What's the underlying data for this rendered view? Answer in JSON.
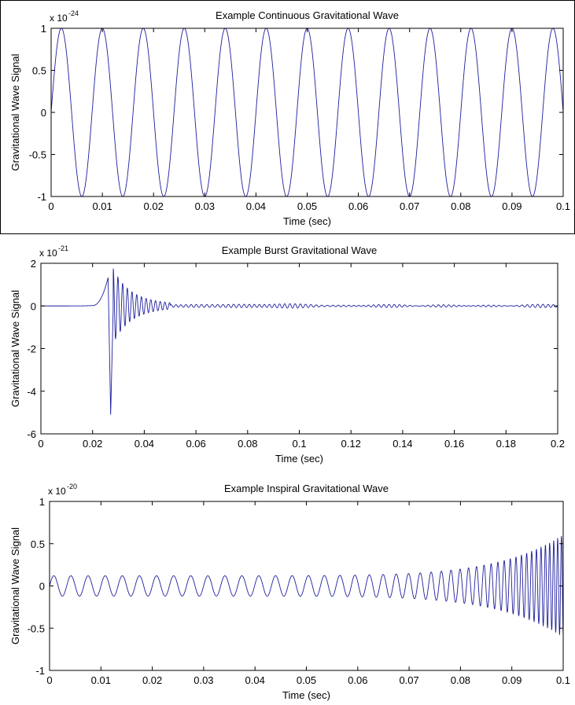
{
  "chart_data": [
    {
      "type": "line",
      "title": "Example Continuous Gravitational Wave",
      "xlabel": "Time (sec)",
      "ylabel": "Gravitational Wave Signal",
      "y_multiplier_base": "x 10",
      "y_multiplier_exp": "-24",
      "xlim": [
        0,
        0.1
      ],
      "ylim": [
        -1,
        1
      ],
      "x_ticks": [
        "0",
        "0.01",
        "0.02",
        "0.03",
        "0.04",
        "0.05",
        "0.06",
        "0.07",
        "0.08",
        "0.09",
        "0.1"
      ],
      "y_ticks": [
        "1",
        "0.5",
        "0",
        "-0.5",
        "-1"
      ],
      "line_color": "#1f1f9e",
      "series": [
        {
          "kind": "sine",
          "amplitude": 1,
          "frequency_hz": 125,
          "phase": 0,
          "x_start": 0,
          "x_end": 0.1
        }
      ]
    },
    {
      "type": "line",
      "title": "Example Burst Gravitational Wave",
      "xlabel": "Time (sec)",
      "ylabel": "Gravitational Wave Signal",
      "y_multiplier_base": "x 10",
      "y_multiplier_exp": "-21",
      "xlim": [
        0,
        0.2
      ],
      "ylim": [
        -6,
        2
      ],
      "x_ticks": [
        "0",
        "0.02",
        "0.04",
        "0.06",
        "0.08",
        "0.1",
        "0.12",
        "0.14",
        "0.16",
        "0.18",
        "0.2"
      ],
      "y_ticks": [
        "2",
        "0",
        "-2",
        "-4",
        "-6"
      ],
      "line_color": "#1f1f9e",
      "series": [
        {
          "kind": "burst",
          "onset": 0.02,
          "peak_time": 0.028,
          "peak_max": 1.4,
          "peak_min": -5.1,
          "ringdown_freq_hz": 550,
          "ringdown_end": 0.05,
          "noise_amplitude": 0.08,
          "x_start": 0,
          "x_end": 0.2
        }
      ]
    },
    {
      "type": "line",
      "title": "Example Inspiral Gravitational Wave",
      "xlabel": "Time (sec)",
      "ylabel": "Gravitational Wave Signal",
      "y_multiplier_base": "x 10",
      "y_multiplier_exp": "-20",
      "xlim": [
        0,
        0.1
      ],
      "ylim": [
        -1,
        1
      ],
      "x_ticks": [
        "0",
        "0.01",
        "0.02",
        "0.03",
        "0.04",
        "0.05",
        "0.06",
        "0.07",
        "0.08",
        "0.09",
        "0.1"
      ],
      "y_ticks": [
        "1",
        "0.5",
        "0",
        "-0.5",
        "-1"
      ],
      "line_color": "#1f1f9e",
      "series": [
        {
          "kind": "chirp",
          "start_amplitude": 0.12,
          "end_amplitude": 0.6,
          "start_frequency_hz": 300,
          "end_frequency_hz": 1400,
          "x_start": 0,
          "x_end": 0.1
        }
      ]
    }
  ]
}
